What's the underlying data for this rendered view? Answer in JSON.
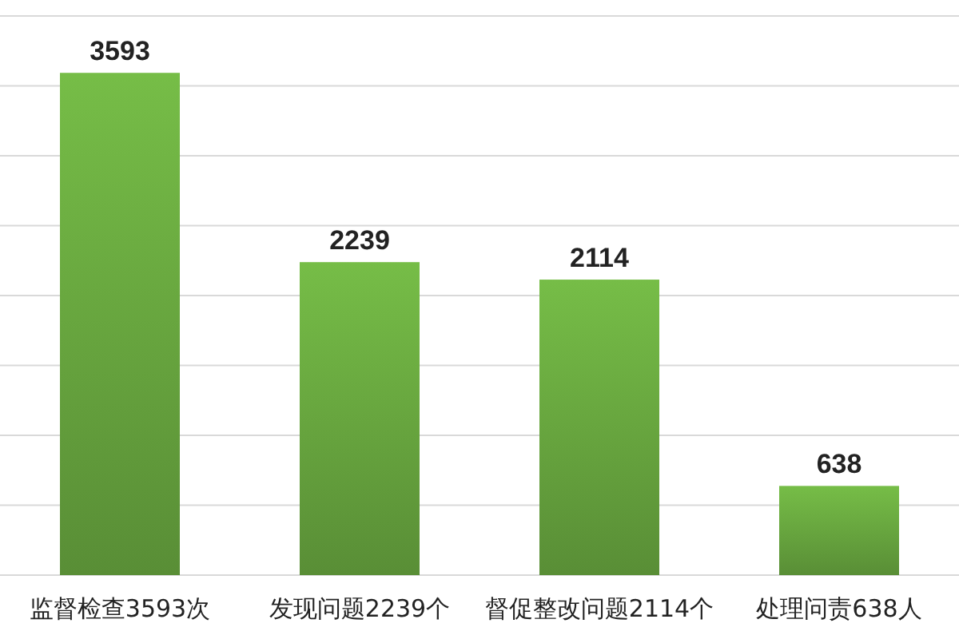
{
  "chart_data": {
    "type": "bar",
    "categories": [
      "监督检查3593次",
      "发现问题2239个",
      "督促整改问题2114个",
      "处理问责638人"
    ],
    "values": [
      3593,
      2239,
      2114,
      638
    ],
    "color": "#6aaa40",
    "data_labels": true,
    "ylim": [
      0,
      4000
    ],
    "yticks": [
      {
        "value": 0,
        "label": null
      },
      {
        "value": 500,
        "label": null
      },
      {
        "value": 1000,
        "label": null
      },
      {
        "value": 1500,
        "label": null
      },
      {
        "value": 2000,
        "label": null
      },
      {
        "value": 2500,
        "label": null
      },
      {
        "value": 3000,
        "label": null
      },
      {
        "value": 3500,
        "label": null
      },
      {
        "value": 4000,
        "label": null
      }
    ],
    "grid": "y",
    "tick_labels": "x"
  }
}
